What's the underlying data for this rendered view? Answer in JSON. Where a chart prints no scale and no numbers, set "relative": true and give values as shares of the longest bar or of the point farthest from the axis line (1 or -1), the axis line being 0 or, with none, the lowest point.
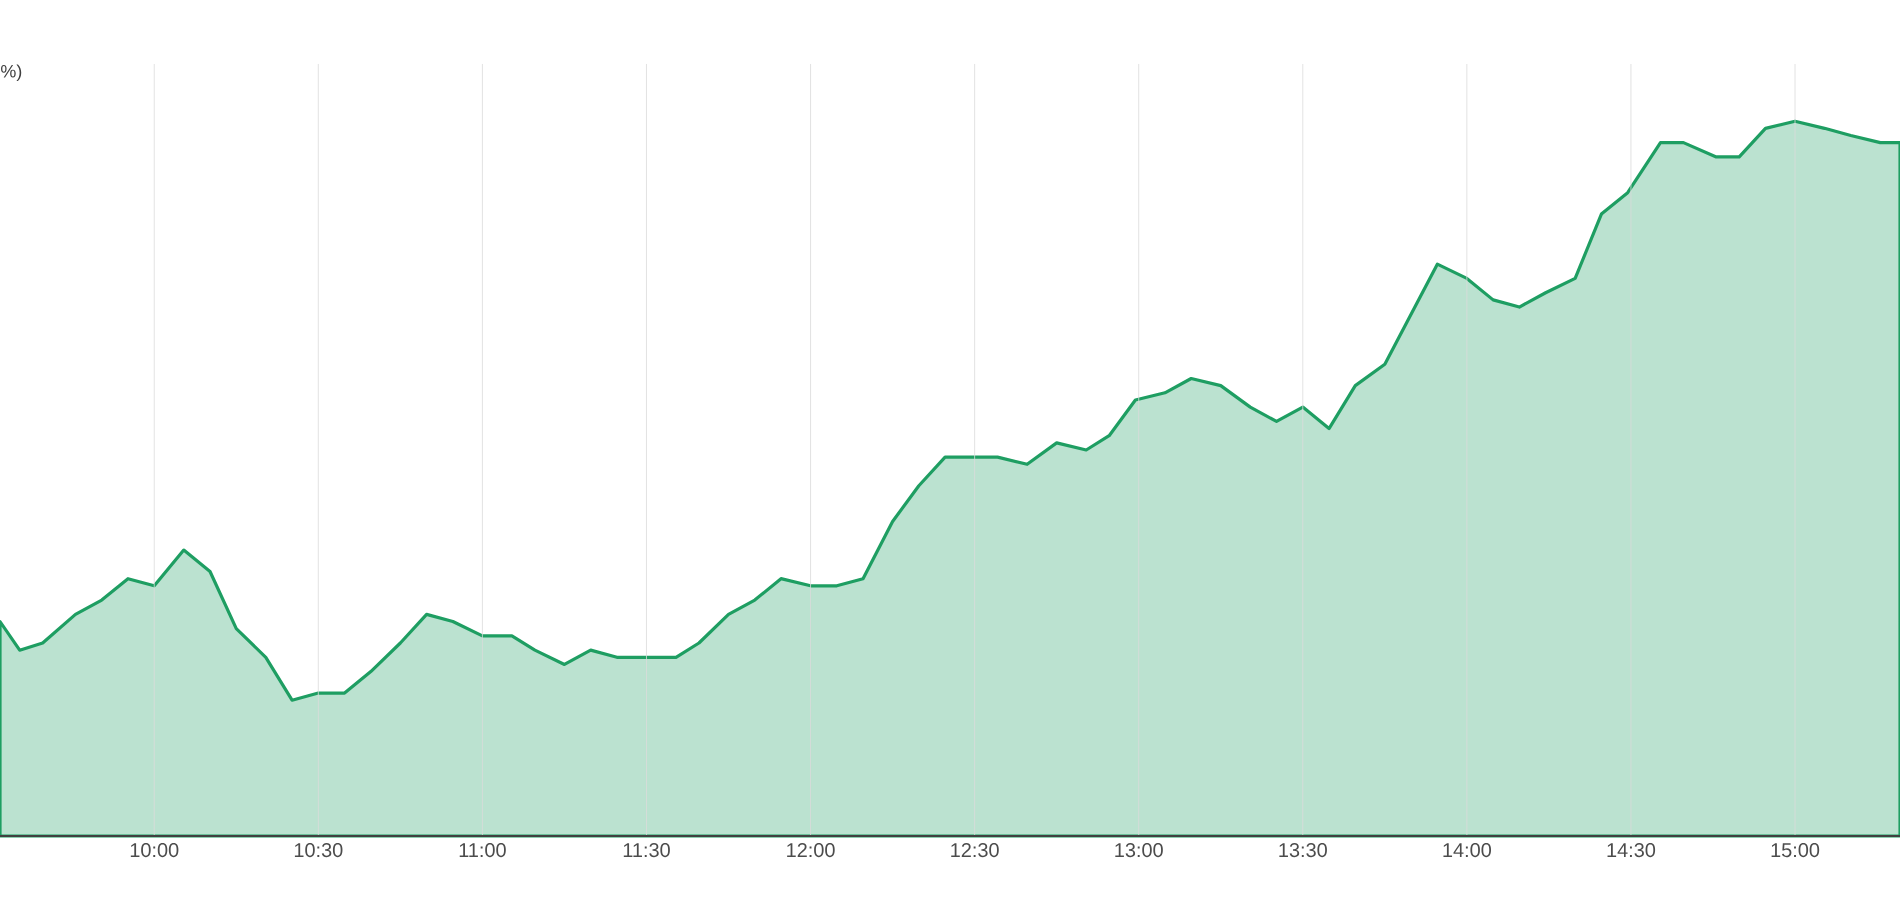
{
  "chart_data": {
    "type": "area",
    "relative": true,
    "grid": true,
    "x": [
      9.53,
      9.59,
      9.66,
      9.76,
      9.84,
      9.92,
      10.0,
      10.09,
      10.17,
      10.25,
      10.34,
      10.42,
      10.5,
      10.58,
      10.66,
      10.75,
      10.83,
      10.91,
      11.0,
      11.09,
      11.16,
      11.25,
      11.33,
      11.41,
      11.5,
      11.59,
      11.66,
      11.75,
      11.83,
      11.91,
      12.0,
      12.08,
      12.16,
      12.25,
      12.33,
      12.41,
      12.5,
      12.57,
      12.66,
      12.75,
      12.84,
      12.91,
      12.99,
      13.08,
      13.16,
      13.25,
      13.34,
      13.42,
      13.5,
      13.58,
      13.66,
      13.75,
      13.83,
      13.91,
      14.0,
      14.08,
      14.16,
      14.24,
      14.33,
      14.41,
      14.49,
      14.59,
      14.66,
      14.76,
      14.83,
      14.91,
      15.0,
      15.09,
      15.17,
      15.26,
      15.32
    ],
    "series": [
      {
        "color": "#1e9e62",
        "values": [
          0.3,
          0.26,
          0.27,
          0.31,
          0.33,
          0.36,
          0.35,
          0.4,
          0.37,
          0.29,
          0.25,
          0.19,
          0.2,
          0.2,
          0.23,
          0.27,
          0.31,
          0.3,
          0.28,
          0.28,
          0.26,
          0.24,
          0.26,
          0.25,
          0.25,
          0.25,
          0.27,
          0.31,
          0.33,
          0.36,
          0.35,
          0.35,
          0.36,
          0.44,
          0.49,
          0.53,
          0.53,
          0.53,
          0.52,
          0.55,
          0.54,
          0.56,
          0.61,
          0.62,
          0.64,
          0.63,
          0.6,
          0.58,
          0.6,
          0.57,
          0.63,
          0.66,
          0.73,
          0.8,
          0.78,
          0.75,
          0.74,
          0.76,
          0.78,
          0.87,
          0.9,
          0.97,
          0.97,
          0.95,
          0.95,
          0.99,
          1.0,
          0.99,
          0.98,
          0.97,
          0.97
        ]
      }
    ],
    "xlim": [
      9.53,
      15.32
    ],
    "xticks": [
      {
        "value": 10,
        "label": "10:00"
      },
      {
        "value": 10.5,
        "label": "10:30"
      },
      {
        "value": 11,
        "label": "11:00"
      },
      {
        "value": 11.5,
        "label": "11:30"
      },
      {
        "value": 12,
        "label": "12:00"
      },
      {
        "value": 12.5,
        "label": "12:30"
      },
      {
        "value": 13,
        "label": "13:00"
      },
      {
        "value": 13.5,
        "label": "13:30"
      },
      {
        "value": 14,
        "label": "14:00"
      },
      {
        "value": 14.5,
        "label": "14:30"
      },
      {
        "value": 15,
        "label": "15:00"
      }
    ],
    "annotations": [
      "%)"
    ]
  }
}
